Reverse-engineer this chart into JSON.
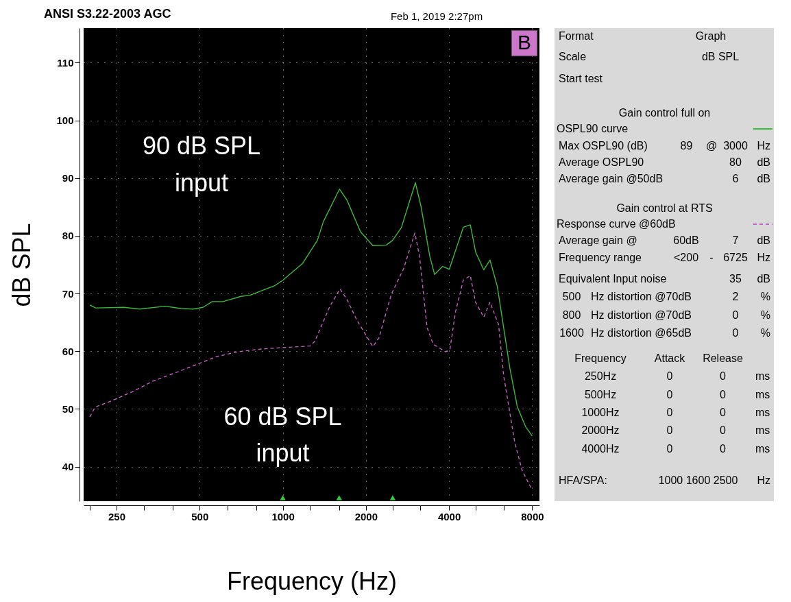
{
  "chart_data": [
    {
      "type": "line",
      "title": "ANSI S3.22-2003 AGC",
      "subtitle": "Feb 1, 2019 2:27pm",
      "xlabel": "Frequency (Hz)",
      "ylabel": "dB SPL",
      "log": "x",
      "grid": true,
      "legend": "right",
      "xlim": [
        190,
        8500
      ],
      "ylim": [
        34,
        116
      ],
      "xticks": [
        {
          "value": 200,
          "label": null
        },
        250,
        {
          "value": 315,
          "label": null
        },
        {
          "value": 400,
          "label": null
        },
        500,
        {
          "value": 630,
          "label": null
        },
        {
          "value": 800,
          "label": null
        },
        1000,
        {
          "value": 1250,
          "label": null
        },
        {
          "value": 1600,
          "label": null
        },
        2000,
        {
          "value": 2500,
          "label": null
        },
        {
          "value": 3150,
          "label": null
        },
        4000,
        {
          "value": 5000,
          "label": null
        },
        {
          "value": 6300,
          "label": null
        },
        8000
      ],
      "yticks": [
        40,
        50,
        60,
        70,
        80,
        90,
        100,
        110
      ],
      "series": [
        {
          "name": "OSPL90 curve",
          "color": "#3cb93c",
          "line_style": "solid",
          "x": [
            200,
            210,
            266,
            303,
            375,
            427,
            474,
            514,
            555,
            607,
            705,
            760,
            938,
            1000,
            1179,
            1334,
            1404,
            1605,
            1707,
            1911,
            2119,
            2372,
            2497,
            2687,
            3021,
            3166,
            3405,
            3545,
            3790,
            4009,
            4220,
            4508,
            4776,
            4998,
            5343,
            5628,
            5984,
            6644,
            7065,
            7575,
            8000
          ],
          "values": [
            68.0,
            67.5,
            67.6,
            67.3,
            67.8,
            67.4,
            67.3,
            67.6,
            68.6,
            68.6,
            69.5,
            69.7,
            71.4,
            72.3,
            75.2,
            79.2,
            82.5,
            88.1,
            86.2,
            80.7,
            78.3,
            78.4,
            79.2,
            81.4,
            89.2,
            85.1,
            76.5,
            73.3,
            74.7,
            74.2,
            77.4,
            81.5,
            81.9,
            77.1,
            74.1,
            75.8,
            71.2,
            57.0,
            50.4,
            46.9,
            45.3
          ]
        },
        {
          "name": "Response curve @60dB",
          "color": "#c060c0",
          "line_style": "dashed",
          "x": [
            200,
            209,
            240,
            289,
            338,
            405,
            500,
            570,
            685,
            845,
            1064,
            1254,
            1306,
            1478,
            1611,
            1707,
            1854,
            2119,
            2229,
            2473,
            2739,
            3008,
            3127,
            3330,
            3506,
            3891,
            4033,
            4220,
            4503,
            4776,
            4988,
            5343,
            5628,
            6046,
            6310,
            6918,
            7361,
            7946
          ],
          "values": [
            48.6,
            50.3,
            51.4,
            53.1,
            54.8,
            56.2,
            57.9,
            59.0,
            59.9,
            60.4,
            60.7,
            60.9,
            61.7,
            67.7,
            70.8,
            69.0,
            65.4,
            60.8,
            62.3,
            69.9,
            74.3,
            80.5,
            76.5,
            64.1,
            61.2,
            59.9,
            60.4,
            66.8,
            72.3,
            73.1,
            68.5,
            65.9,
            68.5,
            64.6,
            55.7,
            44.2,
            39.3,
            36.2
          ]
        },
        {
          "type": "scatter",
          "marker": "triangle",
          "color": "#33cc33",
          "x": [
            1000,
            1600,
            2500
          ],
          "values": [
            34.6,
            34.6,
            34.6
          ]
        }
      ],
      "annotations": [
        "90 dB SPL input",
        {
          "text": "60 dB SPL input",
          "x": 1000,
          "y": 61
        },
        "B"
      ]
    },
    {
      "type": "other",
      "annotations": [
        "Format",
        "Graph",
        "Scale",
        "dB SPL",
        "Start test",
        "Gain control full on",
        "Max OSPL90 (dB)",
        "89",
        "@",
        "3000",
        "Hz",
        "Average OSPL90",
        "80",
        "dB",
        "Average gain @50dB",
        "6",
        "dB",
        "Gain control at RTS",
        "Average gain @",
        "60dB",
        "7",
        "dB",
        "Frequency range",
        "<200",
        "-",
        "6725",
        "Hz",
        "Equivalent Input noise",
        "35",
        "dB",
        "500",
        "Hz distortion @70dB",
        "2",
        "%",
        "800",
        "Hz distortion @70dB",
        "0",
        "%",
        "1600",
        "Hz distortion @65dB",
        "0",
        "%",
        "Frequency",
        "Attack",
        "Release",
        "250Hz",
        "0",
        "0",
        "ms",
        "500Hz",
        "0",
        "0",
        "ms",
        "1000Hz",
        "0",
        "0",
        "ms",
        "2000Hz",
        "0",
        "0",
        "ms",
        "4000Hz",
        "0",
        "0",
        "ms",
        "HFA/SPA:",
        "1000 1600 2500",
        "Hz"
      ]
    }
  ]
}
